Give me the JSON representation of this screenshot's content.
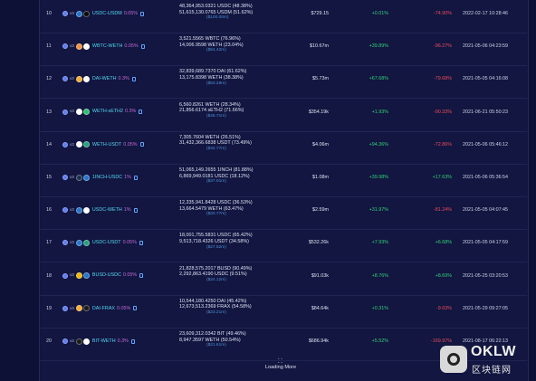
{
  "rows": [
    {
      "idx": "10",
      "pair": "USDC-USDM",
      "fee": "0.05%",
      "t1": "#2775ca",
      "t2": "#0b0b0b",
      "l1": "48,364,953.0321 USDC (48.38%)",
      "l2": "51,615,130.0765 USDM (51.62%)",
      "l3": "($100.00m)",
      "tvl": "$729.15",
      "ch1": "+0.01%",
      "ch1s": "pos",
      "ch2": "-74.90%",
      "ch2s": "neg",
      "time": "2022-02-17 10:28:46"
    },
    {
      "idx": "11",
      "pair": "WBTC-WETH",
      "fee": "0.05%",
      "t1": "#f09242",
      "t2": "#ffffff",
      "l1": "3,521.5565 WBTC (76.96%)",
      "l2": "14,006.9598 WETH (23.04%)",
      "l3": "($54.42m)",
      "tvl": "$10.67m",
      "ch1": "+39.89%",
      "ch1s": "pos",
      "ch2": "-96.27%",
      "ch2s": "neg",
      "time": "2021-05-06 04:23:59"
    },
    {
      "idx": "12",
      "pair": "DAI-WETH",
      "fee": "0.3%",
      "t1": "#f5ac37",
      "t2": "#ffffff",
      "l1": "32,839,689.7370 DAI (61.62%)",
      "l2": "13,175.8398 WETH (38.38%)",
      "l3": "($53.29m)",
      "tvl": "$5.73m",
      "ch1": "+67.68%",
      "ch1s": "pos",
      "ch2": "-79.68%",
      "ch2s": "neg",
      "time": "2021-05-05 04:16:08"
    },
    {
      "idx": "13",
      "pair": "WETH-sETH2",
      "fee": "0.3%",
      "t1": "#ffffff",
      "t2": "#2fbf71",
      "l1": "6,560.8261 WETH (28.34%)",
      "l2": "21,856.6174 sETH2 (71.66%)",
      "l3": "($46.71m)",
      "tvl": "$354.19k",
      "ch1": "+1.93%",
      "ch1s": "pos",
      "ch2": "-90.33%",
      "ch2s": "neg",
      "time": "2021-06-21 05:50:23"
    },
    {
      "idx": "14",
      "pair": "WETH-USDT",
      "fee": "0.05%",
      "t1": "#ffffff",
      "t2": "#26a17b",
      "l1": "7,305.7604 WETH (26.51%)",
      "l2": "31,432,366.6838 USDT (73.49%)",
      "l3": "($42.77m)",
      "tvl": "$4.06m",
      "ch1": "+94.36%",
      "ch1s": "pos",
      "ch2": "-72.86%",
      "ch2s": "neg",
      "time": "2021-05-06 05:46:12"
    },
    {
      "idx": "15",
      "pair": "1INCH-USDC",
      "fee": "1%",
      "t1": "#1b314f",
      "t2": "#2775ca",
      "l1": "51,065,149.2655 1INCH (81.88%)",
      "l2": "6,869,949.0181 USDC (18.12%)",
      "l3": "($37.91m)",
      "tvl": "$1.08m",
      "ch1": "+39.98%",
      "ch1s": "pos",
      "ch2": "+17.63%",
      "ch2s": "pos",
      "time": "2021-05-06 05:36:54"
    },
    {
      "idx": "16",
      "pair": "USDC-WETH",
      "fee": "1%",
      "t1": "#2775ca",
      "t2": "#ffffff",
      "l1": "12,335,941.8428 USDC (36.53%)",
      "l2": "13,664.5479 WETH (63.47%)",
      "l3": "($33.77m)",
      "tvl": "$2.59m",
      "ch1": "+31.97%",
      "ch1s": "pos",
      "ch2": "-81.24%",
      "ch2s": "neg",
      "time": "2021-05-05 04:07:45"
    },
    {
      "idx": "17",
      "pair": "USDC-USDT",
      "fee": "0.05%",
      "t1": "#2775ca",
      "t2": "#26a17b",
      "l1": "18,001,755.5831 USDC (65.42%)",
      "l2": "9,513,718.4326 USDT (34.58%)",
      "l3": "($27.52m)",
      "tvl": "$532.26k",
      "ch1": "+7.93%",
      "ch1s": "pos",
      "ch2": "+6.68%",
      "ch2s": "pos",
      "time": "2021-05-05 04:17:59"
    },
    {
      "idx": "18",
      "pair": "BUSD-USDC",
      "fee": "0.05%",
      "t1": "#f0b90b",
      "t2": "#2775ca",
      "l1": "21,828,575.2017 BUSD (90.49%)",
      "l2": "2,292,863.4190 USDC (9.51%)",
      "l3": "($24.12m)",
      "tvl": "$91.03k",
      "ch1": "+8.76%",
      "ch1s": "pos",
      "ch2": "+8.69%",
      "ch2s": "pos",
      "time": "2021-05-25 03:20:53"
    },
    {
      "idx": "19",
      "pair": "DAI-FRAX",
      "fee": "0.05%",
      "t1": "#f5ac37",
      "t2": "#1a1a1a",
      "l1": "10,544,180.4250 DAI (45.42%)",
      "l2": "12,673,513.2369 FRAX (54.58%)",
      "l3": "($23.21m)",
      "tvl": "$84.64k",
      "ch1": "+0.31%",
      "ch1s": "pos",
      "ch2": "-9.63%",
      "ch2s": "neg",
      "time": "2021-05-29 09:27:05"
    },
    {
      "idx": "20",
      "pair": "BIT-WETH",
      "fee": "0.3%",
      "t1": "#1a1a1a",
      "t2": "#ffffff",
      "l1": "23,609,312.0342 BIT (49.46%)",
      "l2": "8,947.3597 WETH (50.54%)",
      "l3": "($21.61m)",
      "tvl": "$686.94k",
      "ch1": "+5.52%",
      "ch1s": "pos",
      "ch2": "-169.97%",
      "ch2s": "neg",
      "time": "2021-08-17 06:22:13"
    }
  ],
  "loading": {
    "icon": "dots-icon",
    "label": "Loading More"
  },
  "watermark": {
    "brand": "OKLW",
    "cn": "区块链网"
  }
}
